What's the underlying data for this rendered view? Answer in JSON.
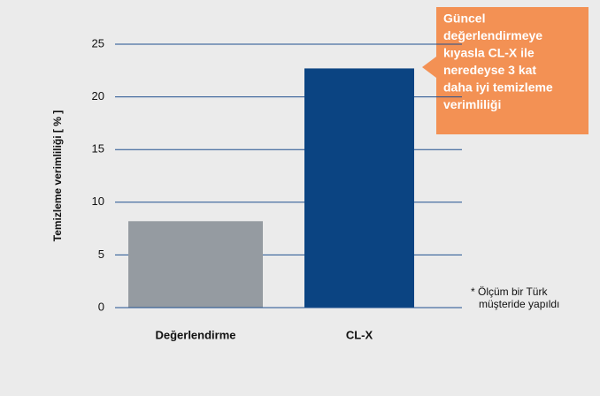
{
  "chart_data": {
    "type": "bar",
    "ylabel": "Temizleme verimliliği [ % ]",
    "categories": [
      "Değerlendirme",
      "CL-X"
    ],
    "values": [
      8.2,
      22.7
    ],
    "colors": [
      "#959ba1",
      "#0b4482"
    ],
    "ylim": [
      0,
      25
    ],
    "yticks": [
      0,
      5,
      10,
      15,
      20,
      25
    ],
    "grid": true,
    "annotation": [
      "Güncel",
      "değerlendirmeye",
      "kıyasla CL-X ile",
      "neredeyse 3 kat",
      "daha iyi temizleme",
      "verimliliği"
    ],
    "footnote": [
      "* Ölçüm bir Türk",
      "müşteride yapıldı"
    ]
  }
}
